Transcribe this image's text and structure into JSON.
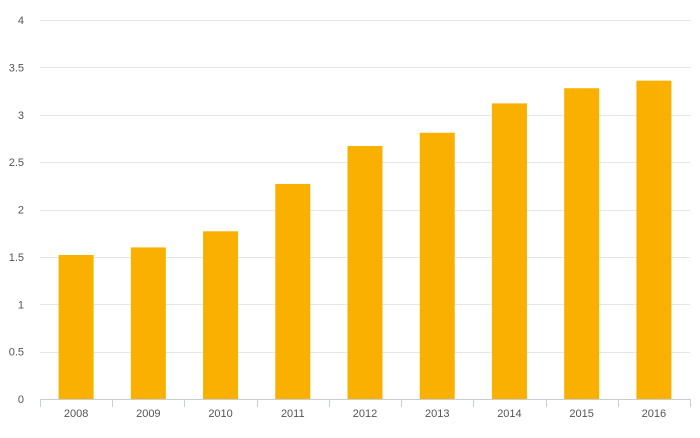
{
  "chart_data": {
    "type": "bar",
    "title": "",
    "xlabel": "",
    "ylabel": "",
    "categories": [
      "2008",
      "2009",
      "2010",
      "2011",
      "2012",
      "2013",
      "2014",
      "2015",
      "2016"
    ],
    "values": [
      1.52,
      1.6,
      1.77,
      2.27,
      2.67,
      2.81,
      3.12,
      3.28,
      3.36
    ],
    "ylim": [
      0,
      4
    ],
    "yticks": [
      "0",
      "0.5",
      "1",
      "1.5",
      "2",
      "2.5",
      "3",
      "3.5",
      "4"
    ],
    "grid": true,
    "legend": "none",
    "colors": {
      "bar": "#f9b000",
      "grid": "#e6e6e6",
      "axis": "#c8cdd8",
      "label": "#555555"
    }
  }
}
